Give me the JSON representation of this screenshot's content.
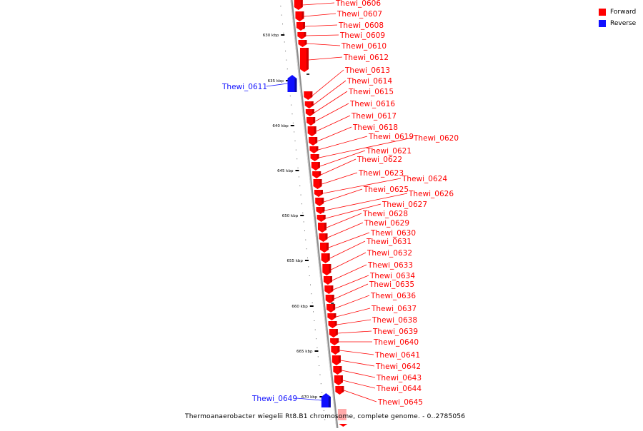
{
  "colors": {
    "forward": "#ff0000",
    "reverse": "#1010ff",
    "axis": "#8c8c8c",
    "tick": "#000000",
    "highlight": "#ffaaaa"
  },
  "legend": [
    {
      "label": "Forward",
      "color": "#ff0000"
    },
    {
      "label": "Reverse",
      "color": "#1010ff"
    }
  ],
  "caption": "Thermoanaerobacter wiegelii Rt8.B1 chromosome, complete genome. - 0..2785056",
  "axis": {
    "unit": "kbp",
    "start_kbp": 628,
    "end_kbp": 672
  },
  "major_ticks": [
    "630 kbp",
    "635 kbp",
    "640 kbp",
    "645 kbp",
    "650 kbp",
    "655 kbp",
    "660 kbp",
    "665 kbp",
    "670 kbp"
  ],
  "genes": [
    {
      "name": "Thewi_0606",
      "strand": "forward"
    },
    {
      "name": "Thewi_0607",
      "strand": "forward"
    },
    {
      "name": "Thewi_0608",
      "strand": "forward"
    },
    {
      "name": "Thewi_0609",
      "strand": "forward"
    },
    {
      "name": "Thewi_0610",
      "strand": "forward"
    },
    {
      "name": "Thewi_0611",
      "strand": "reverse"
    },
    {
      "name": "Thewi_0612",
      "strand": "forward"
    },
    {
      "name": "Thewi_0613",
      "strand": "forward"
    },
    {
      "name": "Thewi_0614",
      "strand": "forward"
    },
    {
      "name": "Thewi_0615",
      "strand": "forward"
    },
    {
      "name": "Thewi_0616",
      "strand": "forward"
    },
    {
      "name": "Thewi_0617",
      "strand": "forward"
    },
    {
      "name": "Thewi_0618",
      "strand": "forward"
    },
    {
      "name": "Thewi_0619",
      "strand": "forward"
    },
    {
      "name": "Thewi_0620",
      "strand": "forward"
    },
    {
      "name": "Thewi_0621",
      "strand": "forward"
    },
    {
      "name": "Thewi_0622",
      "strand": "forward"
    },
    {
      "name": "Thewi_0623",
      "strand": "forward"
    },
    {
      "name": "Thewi_0624",
      "strand": "forward"
    },
    {
      "name": "Thewi_0625",
      "strand": "forward"
    },
    {
      "name": "Thewi_0626",
      "strand": "forward"
    },
    {
      "name": "Thewi_0627",
      "strand": "forward"
    },
    {
      "name": "Thewi_0628",
      "strand": "forward"
    },
    {
      "name": "Thewi_0629",
      "strand": "forward"
    },
    {
      "name": "Thewi_0630",
      "strand": "forward"
    },
    {
      "name": "Thewi_0631",
      "strand": "forward"
    },
    {
      "name": "Thewi_0632",
      "strand": "forward"
    },
    {
      "name": "Thewi_0633",
      "strand": "forward"
    },
    {
      "name": "Thewi_0634",
      "strand": "forward"
    },
    {
      "name": "Thewi_0635",
      "strand": "forward"
    },
    {
      "name": "Thewi_0636",
      "strand": "forward"
    },
    {
      "name": "Thewi_0637",
      "strand": "forward"
    },
    {
      "name": "Thewi_0638",
      "strand": "forward"
    },
    {
      "name": "Thewi_0639",
      "strand": "forward"
    },
    {
      "name": "Thewi_0640",
      "strand": "forward"
    },
    {
      "name": "Thewi_0641",
      "strand": "forward"
    },
    {
      "name": "Thewi_0642",
      "strand": "forward"
    },
    {
      "name": "Thewi_0643",
      "strand": "forward"
    },
    {
      "name": "Thewi_0644",
      "strand": "forward"
    },
    {
      "name": "Thewi_0645",
      "strand": "forward"
    },
    {
      "name": "Thewi_0649",
      "strand": "reverse"
    }
  ]
}
